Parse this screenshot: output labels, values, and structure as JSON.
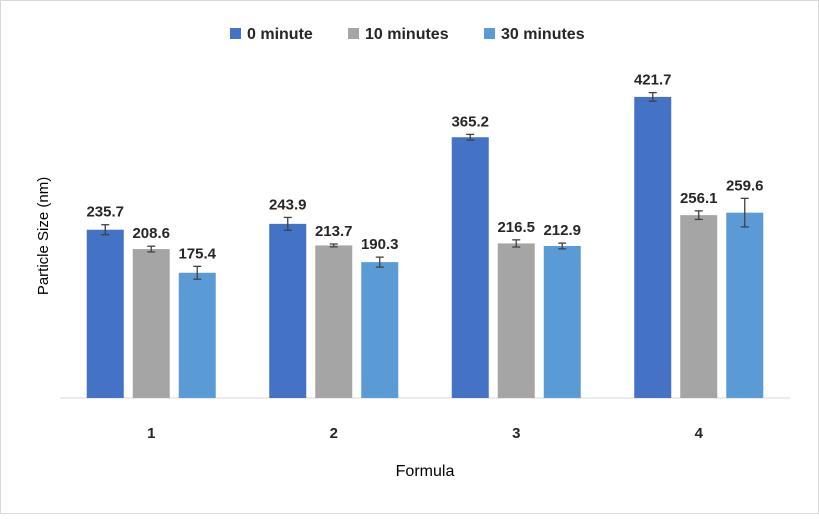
{
  "chart_data": {
    "type": "bar",
    "title": "",
    "xlabel": "Formula",
    "ylabel": "Particle Size  (nm)",
    "categories": [
      "1",
      "2",
      "3",
      "4"
    ],
    "series": [
      {
        "name": "0 minute",
        "color": "#4472C4",
        "values": [
          235.7,
          243.9,
          365.2,
          421.7
        ],
        "errors": [
          7,
          9,
          4,
          6
        ]
      },
      {
        "name": "10 minutes",
        "color": "#A5A5A5",
        "values": [
          208.6,
          213.7,
          216.5,
          256.1
        ],
        "errors": [
          4,
          2,
          5,
          6
        ]
      },
      {
        "name": "30 minutes",
        "color": "#5B9BD5",
        "values": [
          175.4,
          190.3,
          212.9,
          259.6
        ],
        "errors": [
          9,
          7,
          4,
          20
        ]
      }
    ],
    "ylim": [
      0,
      480
    ],
    "grid": false,
    "legend": "top",
    "data_labels": true,
    "error_bars": true
  }
}
